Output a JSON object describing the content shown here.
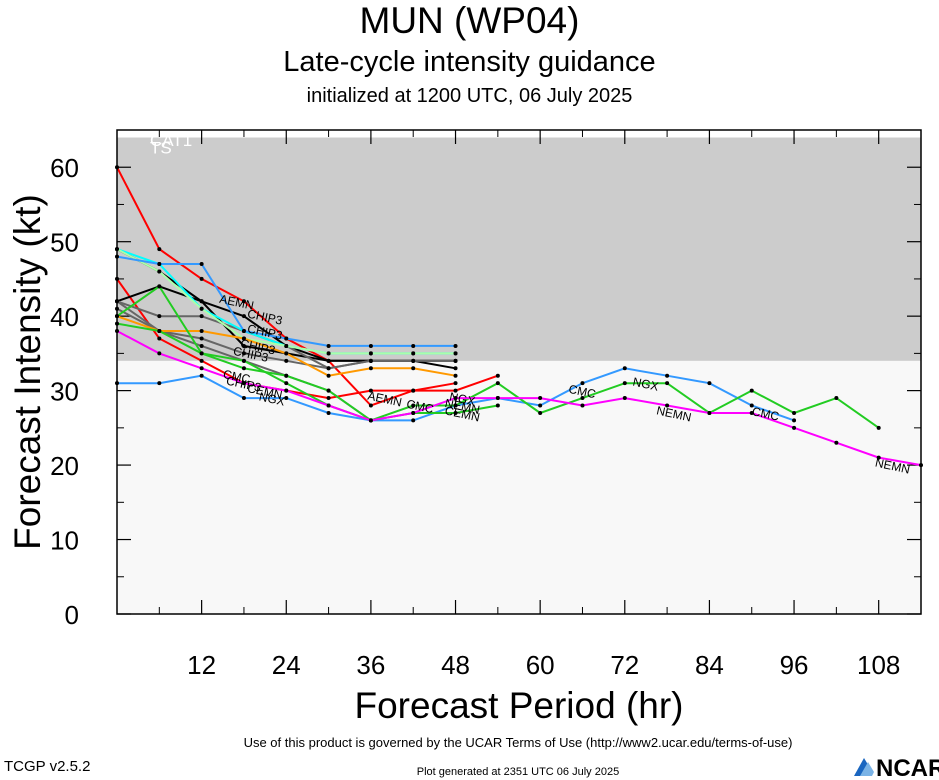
{
  "header": {
    "title": "MUN (WP04)",
    "subtitle": "Late-cycle intensity guidance",
    "init": "initialized at 1200 UTC, 06 July 2025"
  },
  "footer": {
    "terms": "Use of this product is governed by the UCAR Terms of Use (http://www2.ucar.edu/terms-of-use)",
    "version": "TCGP v2.5.2",
    "generated": "Plot generated at 2351 UTC   06 July 2025",
    "logo_text": "NCAR"
  },
  "chart_data": {
    "type": "line",
    "title": "Late-cycle intensity guidance",
    "xlabel": "Forecast Period (hr)",
    "ylabel": "Forecast Intensity (kt)",
    "xlim": [
      0,
      114
    ],
    "ylim": [
      0,
      65
    ],
    "xticks": [
      12,
      24,
      36,
      48,
      60,
      72,
      84,
      96,
      108
    ],
    "yticks": [
      0,
      10,
      20,
      30,
      40,
      50,
      60
    ],
    "bands": [
      {
        "label": "",
        "y0": 0,
        "y1": 34,
        "color": "#f8f8f8"
      },
      {
        "label": "TS",
        "y0": 34,
        "y1": 64,
        "color": "#cccccc"
      },
      {
        "label": "CAT1",
        "y0": 64,
        "y1": 65,
        "color": "#ffffff"
      }
    ],
    "series": [
      {
        "name": "AEMN",
        "color": "#ff0000",
        "x": [
          0,
          6,
          12,
          18,
          24,
          30,
          36,
          42,
          48,
          54
        ],
        "y": [
          60,
          49,
          45,
          42,
          37,
          34,
          28,
          30,
          30,
          32
        ]
      },
      {
        "name": "AEMN",
        "color": "#ff0000",
        "x": [
          0,
          6,
          12,
          18,
          24,
          30,
          36,
          42,
          48
        ],
        "y": [
          45,
          37,
          34,
          31,
          30,
          29,
          30,
          30,
          31
        ]
      },
      {
        "name": "CHIP3",
        "color": "#000000",
        "x": [
          0,
          6,
          12,
          18,
          24,
          30,
          36,
          42,
          48
        ],
        "y": [
          49,
          46,
          42,
          36,
          35,
          34,
          34,
          34,
          34
        ]
      },
      {
        "name": "CHIP3",
        "color": "#000000",
        "x": [
          0,
          6,
          12,
          18,
          24,
          30,
          36,
          42,
          48
        ],
        "y": [
          42,
          44,
          42,
          40,
          36,
          34,
          34,
          34,
          33
        ]
      },
      {
        "name": "CHIP3",
        "color": "#666666",
        "x": [
          0,
          6,
          12,
          18,
          24,
          30,
          36,
          42,
          48
        ],
        "y": [
          42,
          40,
          40,
          38,
          36,
          33,
          34,
          34,
          34
        ]
      },
      {
        "name": "CHIP3",
        "color": "#666666",
        "x": [
          0,
          6,
          12,
          18,
          24,
          30,
          36,
          42,
          48
        ],
        "y": [
          41,
          38,
          37,
          35,
          34,
          33,
          34,
          34,
          34
        ]
      },
      {
        "name": "CHIP3",
        "color": "#666666",
        "x": [
          0,
          6,
          12,
          18,
          24,
          30,
          36
        ],
        "y": [
          42,
          38,
          36,
          34,
          32,
          30,
          26
        ]
      },
      {
        "name": "",
        "color": "#00ffff",
        "x": [
          0,
          6,
          12,
          18,
          24,
          30,
          36,
          42,
          48
        ],
        "y": [
          49,
          47,
          41,
          38,
          36,
          35,
          35,
          35,
          35
        ]
      },
      {
        "name": "",
        "color": "#aaffaa",
        "x": [
          0,
          6,
          12,
          18,
          24,
          30,
          36,
          42,
          48
        ],
        "y": [
          49,
          46,
          41,
          37,
          36,
          35,
          35,
          35,
          35
        ]
      },
      {
        "name": "",
        "color": "#ff9900",
        "x": [
          0,
          6,
          12,
          18,
          24,
          30,
          36,
          42,
          48
        ],
        "y": [
          40,
          38,
          38,
          37,
          35,
          32,
          33,
          33,
          32
        ]
      },
      {
        "name": "",
        "color": "#3399ff",
        "x": [
          0,
          6,
          12,
          18,
          24,
          30,
          36,
          42,
          48
        ],
        "y": [
          48,
          47,
          47,
          38,
          37,
          36,
          36,
          36,
          36
        ]
      },
      {
        "name": "NGX",
        "color": "#3399ff",
        "x": [
          0,
          6,
          12,
          18,
          24,
          30,
          36,
          42,
          48,
          54,
          60,
          66,
          72,
          78,
          84,
          90,
          96
        ],
        "y": [
          31,
          31,
          32,
          29,
          29,
          27,
          26,
          26,
          28,
          29,
          28,
          31,
          33,
          32,
          31,
          28,
          26
        ]
      },
      {
        "name": "CMC",
        "color": "#22cc22",
        "x": [
          0,
          6,
          12,
          18,
          24,
          30,
          36,
          42,
          48,
          54,
          60,
          66,
          72,
          78,
          84,
          90,
          96,
          102,
          108
        ],
        "y": [
          39,
          38,
          35,
          33,
          32,
          30,
          26,
          28,
          28,
          31,
          27,
          29,
          31,
          31,
          27,
          30,
          27,
          29,
          25
        ]
      },
      {
        "name": "CEMN",
        "color": "#22cc22",
        "x": [
          0,
          6,
          12,
          18,
          24,
          30,
          36,
          42,
          48,
          54
        ],
        "y": [
          40,
          44,
          35,
          34,
          31,
          28,
          26,
          27,
          27,
          28
        ]
      },
      {
        "name": "NEMN",
        "color": "#ff00ff",
        "x": [
          0,
          6,
          12,
          18,
          24,
          30,
          36,
          42,
          48,
          54,
          60,
          66,
          72,
          78,
          84,
          90,
          96,
          102,
          108,
          114
        ],
        "y": [
          38,
          35,
          33,
          31,
          30,
          28,
          26,
          27,
          29,
          29,
          29,
          28,
          29,
          28,
          27,
          27,
          25,
          23,
          21,
          20
        ]
      }
    ],
    "annotations": [
      {
        "text": "AEMN",
        "x": 17,
        "y": 42
      },
      {
        "text": "CHIP3",
        "x": 21,
        "y": 40
      },
      {
        "text": "CHIP3",
        "x": 21,
        "y": 38
      },
      {
        "text": "CHIP3",
        "x": 20,
        "y": 36
      },
      {
        "text": "CHIP3",
        "x": 19,
        "y": 35
      },
      {
        "text": "CMC",
        "x": 17,
        "y": 32
      },
      {
        "text": "CHIP3",
        "x": 18,
        "y": 31
      },
      {
        "text": "CEMN",
        "x": 21,
        "y": 30
      },
      {
        "text": "NGX",
        "x": 22,
        "y": 29
      },
      {
        "text": "AEMN",
        "x": 38,
        "y": 29
      },
      {
        "text": "CMC",
        "x": 43,
        "y": 28
      },
      {
        "text": "NGX",
        "x": 49,
        "y": 29
      },
      {
        "text": "NEMN",
        "x": 49,
        "y": 28
      },
      {
        "text": "CEMN",
        "x": 49,
        "y": 27
      },
      {
        "text": "CMC",
        "x": 66,
        "y": 30
      },
      {
        "text": "NGX",
        "x": 75,
        "y": 31
      },
      {
        "text": "NEMN",
        "x": 79,
        "y": 27
      },
      {
        "text": "CMC",
        "x": 92,
        "y": 27
      },
      {
        "text": "NEMN",
        "x": 110,
        "y": 20
      }
    ]
  }
}
